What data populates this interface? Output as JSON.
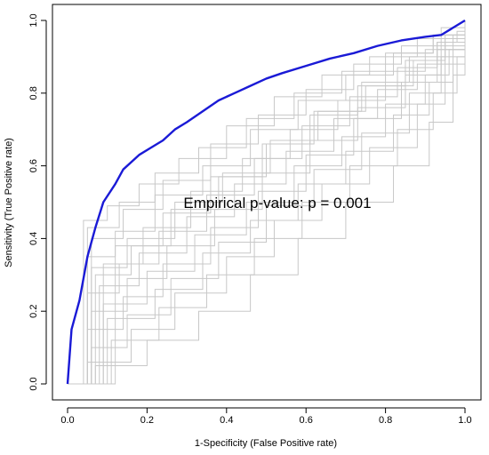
{
  "chart_data": {
    "type": "line",
    "title": "",
    "xlabel": "1-Specificity (False Positive rate)",
    "ylabel": "Sensitivity (True Positive rate)",
    "xlim": [
      0,
      1
    ],
    "ylim": [
      0,
      1
    ],
    "xticks": [
      "0.0",
      "0.2",
      "0.4",
      "0.6",
      "0.8",
      "1.0"
    ],
    "yticks": [
      "0.0",
      "0.2",
      "0.4",
      "0.6",
      "0.8",
      "1.0"
    ],
    "grid": false,
    "annotation": "Empirical p-value:  p = 0.001",
    "colors": {
      "observed": "#1a1ad6",
      "permuted": "#c8c8c8"
    },
    "series": [
      {
        "x": [
          0,
          0.01,
          0.03,
          0.05,
          0.07,
          0.09,
          0.12,
          0.14,
          0.18,
          0.21,
          0.24,
          0.27,
          0.3,
          0.34,
          0.38,
          0.42,
          0.46,
          0.5,
          0.54,
          0.6,
          0.66,
          0.72,
          0.78,
          0.84,
          0.87,
          0.9,
          0.94,
          1.0
        ],
        "y": [
          0,
          0.15,
          0.23,
          0.35,
          0.43,
          0.5,
          0.55,
          0.59,
          0.63,
          0.65,
          0.67,
          0.7,
          0.72,
          0.75,
          0.78,
          0.8,
          0.82,
          0.84,
          0.855,
          0.875,
          0.895,
          0.91,
          0.93,
          0.945,
          0.95,
          0.955,
          0.96,
          1.0
        ]
      }
    ],
    "permuted_curves": [
      [
        [
          0.04,
          0.45
        ],
        [
          0.1,
          0.49
        ],
        [
          0.18,
          0.55
        ],
        [
          0.28,
          0.62
        ],
        [
          0.4,
          0.71
        ],
        [
          0.52,
          0.79
        ],
        [
          0.64,
          0.85
        ],
        [
          0.76,
          0.9
        ],
        [
          0.88,
          0.95
        ],
        [
          1.0,
          1.0
        ]
      ],
      [
        [
          0.06,
          0.4
        ],
        [
          0.14,
          0.48
        ],
        [
          0.24,
          0.56
        ],
        [
          0.36,
          0.66
        ],
        [
          0.48,
          0.74
        ],
        [
          0.6,
          0.81
        ],
        [
          0.72,
          0.88
        ],
        [
          0.84,
          0.93
        ],
        [
          0.94,
          0.98
        ],
        [
          1.0,
          1.0
        ]
      ],
      [
        [
          0.05,
          0.35
        ],
        [
          0.12,
          0.42
        ],
        [
          0.22,
          0.52
        ],
        [
          0.34,
          0.6
        ],
        [
          0.46,
          0.7
        ],
        [
          0.58,
          0.78
        ],
        [
          0.7,
          0.85
        ],
        [
          0.82,
          0.91
        ],
        [
          0.92,
          0.96
        ],
        [
          1.0,
          1.0
        ]
      ],
      [
        [
          0.07,
          0.3
        ],
        [
          0.16,
          0.38
        ],
        [
          0.26,
          0.48
        ],
        [
          0.38,
          0.57
        ],
        [
          0.5,
          0.66
        ],
        [
          0.62,
          0.75
        ],
        [
          0.74,
          0.83
        ],
        [
          0.86,
          0.9
        ],
        [
          0.95,
          0.96
        ],
        [
          1.0,
          1.0
        ]
      ],
      [
        [
          0.05,
          0.25
        ],
        [
          0.13,
          0.33
        ],
        [
          0.23,
          0.42
        ],
        [
          0.35,
          0.52
        ],
        [
          0.47,
          0.62
        ],
        [
          0.59,
          0.71
        ],
        [
          0.71,
          0.79
        ],
        [
          0.83,
          0.87
        ],
        [
          0.93,
          0.94
        ],
        [
          1.0,
          1.0
        ]
      ],
      [
        [
          0.06,
          0.2
        ],
        [
          0.15,
          0.29
        ],
        [
          0.25,
          0.38
        ],
        [
          0.37,
          0.48
        ],
        [
          0.49,
          0.58
        ],
        [
          0.61,
          0.67
        ],
        [
          0.73,
          0.76
        ],
        [
          0.85,
          0.85
        ],
        [
          0.94,
          0.93
        ],
        [
          1.0,
          1.0
        ]
      ],
      [
        [
          0.05,
          0.15
        ],
        [
          0.14,
          0.24
        ],
        [
          0.24,
          0.33
        ],
        [
          0.36,
          0.43
        ],
        [
          0.48,
          0.53
        ],
        [
          0.6,
          0.63
        ],
        [
          0.72,
          0.73
        ],
        [
          0.84,
          0.83
        ],
        [
          0.93,
          0.92
        ],
        [
          1.0,
          1.0
        ]
      ],
      [
        [
          0.06,
          0.1
        ],
        [
          0.15,
          0.19
        ],
        [
          0.26,
          0.29
        ],
        [
          0.38,
          0.39
        ],
        [
          0.5,
          0.49
        ],
        [
          0.62,
          0.59
        ],
        [
          0.74,
          0.69
        ],
        [
          0.86,
          0.8
        ],
        [
          0.94,
          0.9
        ],
        [
          1.0,
          1.0
        ]
      ],
      [
        [
          0.05,
          0.06
        ],
        [
          0.16,
          0.15
        ],
        [
          0.27,
          0.25
        ],
        [
          0.4,
          0.35
        ],
        [
          0.52,
          0.45
        ],
        [
          0.64,
          0.55
        ],
        [
          0.76,
          0.65
        ],
        [
          0.88,
          0.77
        ],
        [
          0.95,
          0.88
        ],
        [
          1.0,
          1.0
        ]
      ],
      [
        [
          0.08,
          0.27
        ],
        [
          0.18,
          0.36
        ],
        [
          0.3,
          0.46
        ],
        [
          0.42,
          0.55
        ],
        [
          0.55,
          0.64
        ],
        [
          0.67,
          0.73
        ],
        [
          0.78,
          0.81
        ],
        [
          0.88,
          0.88
        ],
        [
          0.95,
          0.94
        ],
        [
          1.0,
          1.0
        ]
      ],
      [
        [
          0.09,
          0.33
        ],
        [
          0.19,
          0.43
        ],
        [
          0.31,
          0.53
        ],
        [
          0.44,
          0.62
        ],
        [
          0.56,
          0.7
        ],
        [
          0.68,
          0.78
        ],
        [
          0.8,
          0.86
        ],
        [
          0.9,
          0.92
        ],
        [
          0.97,
          0.96
        ],
        [
          1.0,
          1.0
        ]
      ],
      [
        [
          0.1,
          0.18
        ],
        [
          0.22,
          0.26
        ],
        [
          0.34,
          0.36
        ],
        [
          0.46,
          0.45
        ],
        [
          0.58,
          0.55
        ],
        [
          0.7,
          0.64
        ],
        [
          0.82,
          0.74
        ],
        [
          0.91,
          0.83
        ],
        [
          0.97,
          0.92
        ],
        [
          1.0,
          1.0
        ]
      ],
      [
        [
          0.11,
          0.12
        ],
        [
          0.23,
          0.21
        ],
        [
          0.35,
          0.3
        ],
        [
          0.47,
          0.4
        ],
        [
          0.59,
          0.5
        ],
        [
          0.71,
          0.6
        ],
        [
          0.83,
          0.7
        ],
        [
          0.92,
          0.8
        ],
        [
          0.98,
          0.9
        ],
        [
          1.0,
          1.0
        ]
      ],
      [
        [
          0.12,
          0.38
        ],
        [
          0.24,
          0.47
        ],
        [
          0.36,
          0.57
        ],
        [
          0.49,
          0.66
        ],
        [
          0.61,
          0.74
        ],
        [
          0.73,
          0.82
        ],
        [
          0.85,
          0.89
        ],
        [
          0.93,
          0.94
        ],
        [
          0.98,
          0.97
        ],
        [
          1.0,
          1.0
        ]
      ],
      [
        [
          0.07,
          0.05
        ],
        [
          0.2,
          0.12
        ],
        [
          0.33,
          0.2
        ],
        [
          0.46,
          0.3
        ],
        [
          0.58,
          0.4
        ],
        [
          0.7,
          0.5
        ],
        [
          0.82,
          0.6
        ],
        [
          0.91,
          0.72
        ],
        [
          0.97,
          0.85
        ],
        [
          1.0,
          1.0
        ]
      ],
      [
        [
          0.05,
          0.43
        ],
        [
          0.13,
          0.5
        ],
        [
          0.22,
          0.58
        ],
        [
          0.33,
          0.65
        ],
        [
          0.45,
          0.73
        ],
        [
          0.57,
          0.8
        ],
        [
          0.69,
          0.86
        ],
        [
          0.8,
          0.91
        ],
        [
          0.92,
          0.96
        ],
        [
          1.0,
          1.0
        ]
      ],
      [
        [
          0.09,
          0.22
        ],
        [
          0.2,
          0.31
        ],
        [
          0.32,
          0.41
        ],
        [
          0.45,
          0.5
        ],
        [
          0.57,
          0.6
        ],
        [
          0.69,
          0.68
        ],
        [
          0.8,
          0.77
        ],
        [
          0.9,
          0.85
        ],
        [
          0.96,
          0.92
        ],
        [
          1.0,
          1.0
        ]
      ],
      [
        [
          0.06,
          0.32
        ],
        [
          0.15,
          0.4
        ],
        [
          0.27,
          0.5
        ],
        [
          0.39,
          0.58
        ],
        [
          0.51,
          0.67
        ],
        [
          0.63,
          0.75
        ],
        [
          0.75,
          0.82
        ],
        [
          0.87,
          0.89
        ],
        [
          0.95,
          0.95
        ],
        [
          1.0,
          1.0
        ]
      ]
    ]
  }
}
